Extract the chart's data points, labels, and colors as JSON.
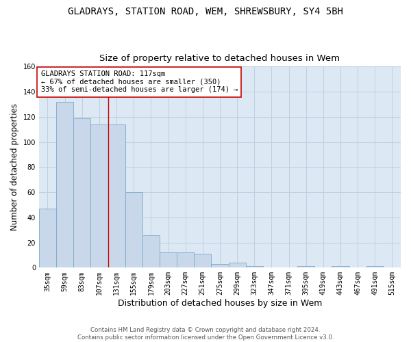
{
  "title": "GLADRAYS, STATION ROAD, WEM, SHREWSBURY, SY4 5BH",
  "subtitle": "Size of property relative to detached houses in Wem",
  "xlabel": "Distribution of detached houses by size in Wem",
  "ylabel": "Number of detached properties",
  "categories": [
    "35sqm",
    "59sqm",
    "83sqm",
    "107sqm",
    "131sqm",
    "155sqm",
    "179sqm",
    "203sqm",
    "227sqm",
    "251sqm",
    "275sqm",
    "299sqm",
    "323sqm",
    "347sqm",
    "371sqm",
    "395sqm",
    "419sqm",
    "443sqm",
    "467sqm",
    "491sqm",
    "515sqm"
  ],
  "values": [
    47,
    132,
    119,
    114,
    114,
    60,
    26,
    12,
    12,
    11,
    3,
    4,
    1,
    0,
    0,
    1,
    0,
    1,
    0,
    1,
    0
  ],
  "bar_color": "#c8d8ea",
  "bar_edge_color": "#7aaacb",
  "bar_width": 1.0,
  "grid_color": "#c0d0e0",
  "background_color": "#dce8f4",
  "vline_color": "#cc0000",
  "annotation_text": "GLADRAYS STATION ROAD: 117sqm\n← 67% of detached houses are smaller (350)\n33% of semi-detached houses are larger (174) →",
  "annotation_box_color": "white",
  "annotation_box_edge_color": "#cc0000",
  "ylim": [
    0,
    160
  ],
  "yticks": [
    0,
    20,
    40,
    60,
    80,
    100,
    120,
    140,
    160
  ],
  "footnote": "Contains HM Land Registry data © Crown copyright and database right 2024.\nContains public sector information licensed under the Open Government Licence v3.0.",
  "title_fontsize": 10,
  "subtitle_fontsize": 9.5,
  "ylabel_fontsize": 8.5,
  "xlabel_fontsize": 9,
  "tick_fontsize": 7,
  "annot_fontsize": 7.5,
  "footnote_fontsize": 6.2
}
